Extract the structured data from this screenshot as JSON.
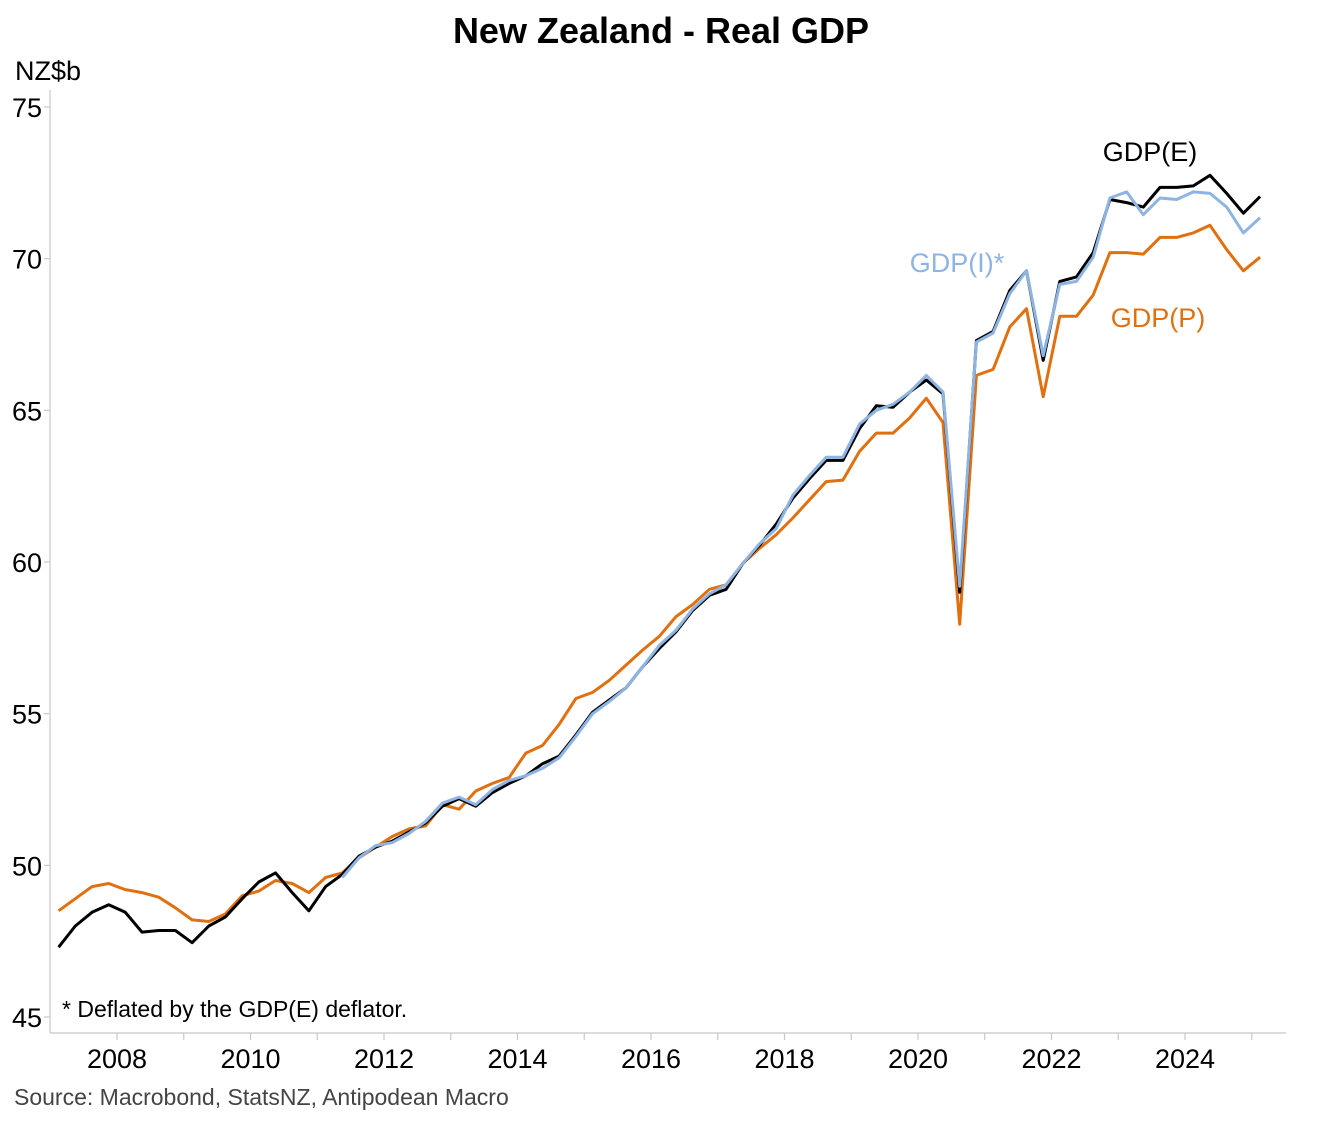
{
  "chart_data": {
    "type": "line",
    "title": "New Zealand - Real GDP",
    "ylabel": "NZ$b",
    "xlabel": "",
    "ylim": [
      45,
      75.5
    ],
    "xlim": [
      2007.0,
      2025.5
    ],
    "y_ticks": [
      45,
      50,
      55,
      60,
      65,
      70,
      75
    ],
    "x_ticks": [
      2008,
      2010,
      2012,
      2014,
      2016,
      2018,
      2020,
      2022,
      2024
    ],
    "x_tick_labels": [
      "2008",
      "2010",
      "2012",
      "2014",
      "2016",
      "2018",
      "2020",
      "2022",
      "2024"
    ],
    "grid": false,
    "footnote": "* Deflated by the GDP(E) deflator.",
    "source": "Source: Macrobond, StatsNZ, Antipodean Macro",
    "x_start": 2007.125,
    "x_step": 0.25,
    "series": [
      {
        "name": "GDP(E)",
        "color": "#000000",
        "values": [
          47.3,
          48.0,
          48.45,
          48.7,
          48.45,
          47.8,
          47.85,
          47.85,
          47.45,
          48.0,
          48.3,
          48.9,
          49.45,
          49.75,
          49.1,
          48.5,
          49.3,
          49.7,
          50.3,
          50.6,
          50.8,
          51.1,
          51.4,
          51.95,
          52.2,
          51.95,
          52.4,
          52.7,
          52.95,
          53.35,
          53.6,
          54.3,
          55.05,
          55.45,
          55.85,
          56.55,
          57.15,
          57.7,
          58.4,
          58.9,
          59.1,
          59.95,
          60.55,
          61.25,
          62.1,
          62.75,
          63.35,
          63.35,
          64.4,
          65.15,
          65.1,
          65.6,
          66.0,
          65.55,
          59.0,
          67.3,
          67.6,
          68.95,
          69.6,
          66.65,
          69.25,
          69.4,
          70.2,
          71.95,
          71.85,
          71.7,
          72.35,
          72.35,
          72.4,
          72.75,
          72.15,
          71.5,
          72.05
        ]
      },
      {
        "name": "GDP(I)*",
        "color": "#8db4e2",
        "values": [
          null,
          null,
          null,
          null,
          null,
          null,
          null,
          null,
          null,
          null,
          null,
          null,
          null,
          null,
          null,
          null,
          null,
          49.6,
          50.25,
          50.65,
          50.75,
          51.05,
          51.45,
          52.05,
          52.25,
          52.0,
          52.5,
          52.8,
          52.95,
          53.2,
          53.55,
          54.25,
          55.0,
          55.4,
          55.85,
          56.55,
          57.25,
          57.75,
          58.45,
          58.95,
          59.25,
          59.95,
          60.6,
          61.1,
          62.2,
          62.85,
          63.45,
          63.45,
          64.55,
          65.0,
          65.2,
          65.6,
          66.15,
          65.6,
          59.2,
          67.25,
          67.55,
          68.85,
          69.6,
          66.8,
          69.15,
          69.25,
          70.05,
          72.0,
          72.2,
          71.45,
          72.0,
          71.95,
          72.2,
          72.15,
          71.7,
          70.85,
          71.35
        ]
      },
      {
        "name": "GDP(P)",
        "color": "#e07010",
        "values": [
          48.5,
          48.9,
          49.3,
          49.4,
          49.2,
          49.1,
          48.95,
          48.6,
          48.2,
          48.15,
          48.4,
          49.0,
          49.15,
          49.5,
          49.4,
          49.1,
          49.6,
          49.75,
          50.25,
          50.6,
          50.95,
          51.2,
          51.3,
          52.0,
          51.85,
          52.45,
          52.7,
          52.9,
          53.7,
          53.95,
          54.65,
          55.5,
          55.7,
          56.1,
          56.6,
          57.1,
          57.55,
          58.2,
          58.6,
          59.1,
          59.25,
          59.95,
          60.45,
          60.9,
          61.45,
          62.05,
          62.65,
          62.7,
          63.65,
          64.25,
          64.25,
          64.75,
          65.4,
          64.6,
          57.95,
          66.15,
          66.35,
          67.75,
          68.35,
          65.45,
          68.1,
          68.1,
          68.8,
          70.2,
          70.2,
          70.15,
          70.7,
          70.7,
          70.85,
          71.1,
          70.3,
          69.6,
          70.05
        ]
      }
    ],
    "series_labels": [
      "GDP(E)",
      "GDP(I)*",
      "GDP(P)"
    ]
  }
}
